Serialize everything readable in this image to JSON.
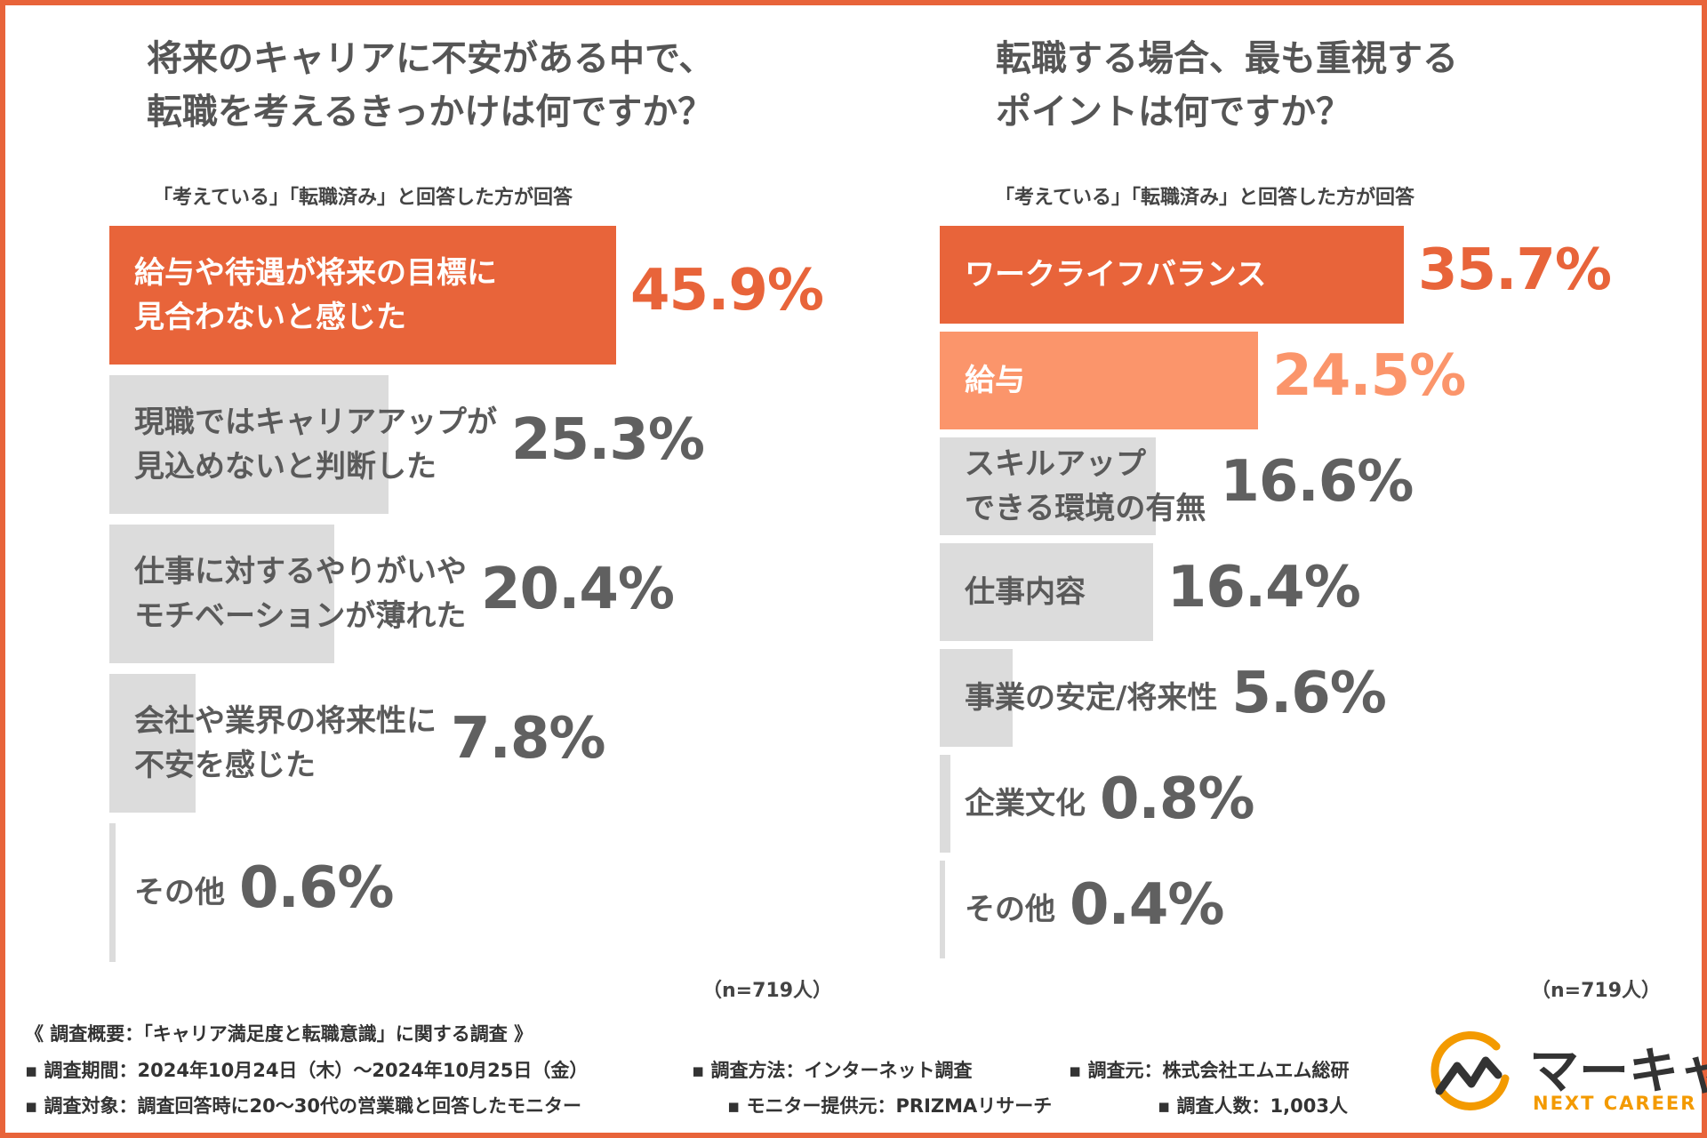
{
  "colors": {
    "accent": "#e8643a",
    "accent_light": "#fb956b",
    "gray_bar": "#dcdcdc",
    "value_gray": "#606060",
    "brand_orange": "#f39a00"
  },
  "chart_data": [
    {
      "type": "bar",
      "orientation": "horizontal",
      "title_lines": [
        "将来のキャリアに不安がある中で、",
        "転職を考えるきっかけは何ですか？"
      ],
      "subtitle": "「考えている」「転職済み」と回答した方が回答",
      "unit": "%",
      "xlim": [
        0,
        45.9
      ],
      "categories": [
        [
          "給与や待遇が将来の目標に",
          "見合わないと感じた"
        ],
        [
          "現職ではキャリアアップが",
          "見込めないと判断した"
        ],
        [
          "仕事に対するやりがいや",
          "モチベーションが薄れた"
        ],
        [
          "会社や業界の将来性に",
          "不安を感じた"
        ],
        [
          "その他"
        ]
      ],
      "values": [
        45.9,
        25.3,
        20.4,
        7.8,
        0.6
      ],
      "value_labels": [
        "45.9%",
        "25.3%",
        "20.4%",
        "7.8%",
        "0.6%"
      ],
      "highlight": [
        "accent",
        "gray",
        "gray",
        "gray",
        "gray"
      ],
      "n_label": "（n=719人）"
    },
    {
      "type": "bar",
      "orientation": "horizontal",
      "title_lines": [
        "転職する場合、最も重視する",
        "ポイントは何ですか？"
      ],
      "subtitle": "「考えている」「転職済み」と回答した方が回答",
      "unit": "%",
      "xlim": [
        0,
        35.7
      ],
      "categories": [
        [
          "ワークライフバランス"
        ],
        [
          "給与"
        ],
        [
          "スキルアップ",
          "できる環境の有無"
        ],
        [
          "仕事内容"
        ],
        [
          "事業の安定/将来性"
        ],
        [
          "企業文化"
        ],
        [
          "その他"
        ]
      ],
      "values": [
        35.7,
        24.5,
        16.6,
        16.4,
        5.6,
        0.8,
        0.4
      ],
      "value_labels": [
        "35.7%",
        "24.5%",
        "16.6%",
        "16.4%",
        "5.6%",
        "0.8%",
        "0.4%"
      ],
      "highlight": [
        "accent",
        "accent_light",
        "gray",
        "gray",
        "gray",
        "gray",
        "gray"
      ],
      "n_label": "（n=719人）"
    }
  ],
  "footer": {
    "heading": "《 調査概要：「キャリア満足度と転職意識」に関する調査 》",
    "items": [
      "▪ 調査期間：2024年10月24日（木）～2024年10月25日（金）",
      "▪ 調査方法：インターネット調査",
      "▪ 調査元：株式会社エムエム総研",
      "▪ 調査対象：調査回答時に20～30代の営業職と回答したモニター",
      "▪ モニター提供元：PRIZMAリサーチ",
      "▪ 調査人数：1,003人"
    ]
  },
  "brand": {
    "name": "マーキャリ",
    "tagline": "NEXT CAREER"
  }
}
